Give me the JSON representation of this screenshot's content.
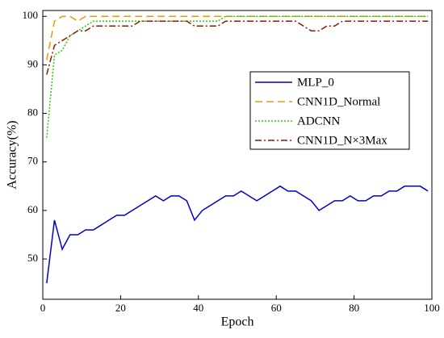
{
  "chart_data": {
    "type": "line",
    "x_label": "Epoch",
    "y_label": "Accuracy(%)",
    "x": [
      1,
      3,
      5,
      7,
      9,
      11,
      13,
      15,
      17,
      19,
      21,
      23,
      25,
      27,
      29,
      31,
      33,
      35,
      37,
      39,
      41,
      43,
      45,
      47,
      49,
      51,
      53,
      55,
      57,
      59,
      61,
      63,
      65,
      67,
      69,
      71,
      73,
      75,
      77,
      79,
      81,
      83,
      85,
      87,
      89,
      91,
      93,
      95,
      97,
      99
    ],
    "series": [
      {
        "name": "MLP_0",
        "color": "#0000cc",
        "dash": "none",
        "values": [
          45,
          58,
          52,
          55,
          55,
          56,
          56,
          57,
          58,
          59,
          59,
          60,
          61,
          62,
          63,
          62,
          63,
          63,
          62,
          58,
          60,
          61,
          62,
          63,
          63,
          64,
          63,
          62,
          63,
          64,
          65,
          64,
          64,
          63,
          62,
          60,
          61,
          62,
          62,
          63,
          62,
          62,
          63,
          63,
          64,
          64,
          65,
          65,
          65,
          64
        ]
      },
      {
        "name": "CNN1D_Normal",
        "color": "#e69b00",
        "dash": "9,5",
        "values": [
          91,
          99,
          100,
          100,
          99,
          100,
          100,
          100,
          100,
          100,
          100,
          100,
          100,
          100,
          100,
          100,
          100,
          100,
          100,
          100,
          100,
          100,
          100,
          100,
          100,
          100,
          100,
          100,
          100,
          100,
          100,
          100,
          100,
          100,
          100,
          100,
          100,
          100,
          100,
          100,
          100,
          100,
          100,
          100,
          100,
          100,
          100,
          100,
          100,
          100
        ]
      },
      {
        "name": "ADCNN",
        "color": "#33cc00",
        "dash": "2,2",
        "values": [
          75,
          92,
          93,
          96,
          97,
          98,
          99,
          99,
          99,
          99,
          99,
          99,
          99,
          99,
          99,
          99,
          99,
          99,
          99,
          99,
          99,
          99,
          99,
          100,
          100,
          100,
          100,
          100,
          100,
          100,
          100,
          100,
          100,
          100,
          100,
          100,
          100,
          100,
          100,
          100,
          100,
          100,
          100,
          100,
          100,
          100,
          100,
          100,
          100,
          100
        ]
      },
      {
        "name": "CNN1D_N×3Max",
        "color": "#8b1a00",
        "dash": "8,3,2,3",
        "values": [
          88,
          94,
          95,
          96,
          97,
          97,
          98,
          98,
          98,
          98,
          98,
          98,
          99,
          99,
          99,
          99,
          99,
          99,
          99,
          98,
          98,
          98,
          98,
          99,
          99,
          99,
          99,
          99,
          99,
          99,
          99,
          99,
          99,
          98,
          97,
          97,
          98,
          98,
          99,
          99,
          99,
          99,
          99,
          99,
          99,
          99,
          99,
          99,
          99,
          99
        ]
      }
    ],
    "xlim": [
      0,
      100
    ],
    "xticks": [
      0,
      20,
      40,
      60,
      80,
      100
    ],
    "ylim": [
      41.7,
      101.2
    ],
    "yticks": [
      50,
      60,
      70,
      80,
      90,
      100
    ]
  }
}
